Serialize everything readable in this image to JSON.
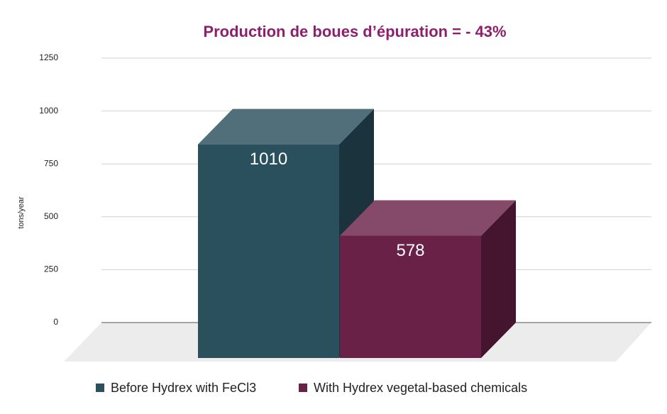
{
  "chart_data": {
    "type": "bar3d",
    "title": "Production de boues d’épuration = - 43%",
    "y_label": "tons/year",
    "series": [
      {
        "name": "Before Hydrex with FeCl3",
        "color": "#2a4f5d",
        "values": [
          1010
        ]
      },
      {
        "name": "With Hydrex vegetal-based chemicals",
        "color": "#6a2148",
        "values": [
          578
        ]
      }
    ],
    "ylim": [
      0,
      1250
    ],
    "yticks": [
      0,
      250,
      500,
      750,
      1000,
      1250
    ],
    "grid": true,
    "legend": "bottom"
  }
}
